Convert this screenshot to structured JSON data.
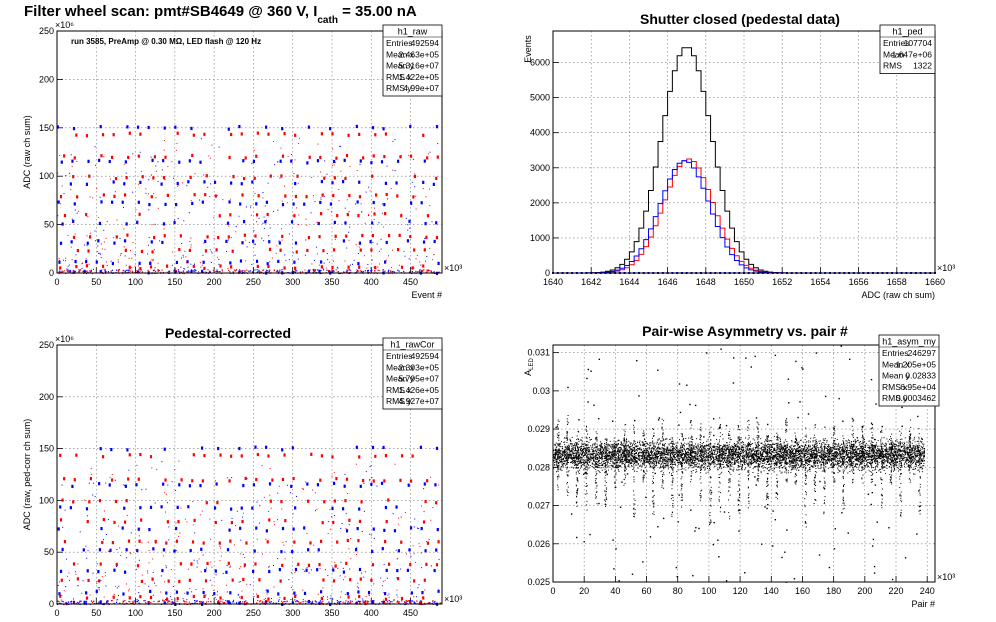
{
  "chart_data": [
    {
      "id": "raw",
      "type": "scatter",
      "title_main": "Filter wheel scan: pmt#SB4649 @   360 V, I",
      "title_sub": "cath",
      "title_tail": " = 35.00 nA",
      "annotation": "run 3585, PreAmp @ 0.30 MΩ, LED flash @  120 Hz",
      "xlabel": "Event #",
      "ylabel": "ADC (raw ch sum)",
      "x_exponent": "×10³",
      "y_exponent": "×10⁶",
      "xlim": [
        0,
        490
      ],
      "ylim": [
        0,
        250
      ],
      "xticks": [
        "0",
        "50",
        "100",
        "150",
        "200",
        "250",
        "300",
        "350",
        "400",
        "450"
      ],
      "yticks": [
        "0",
        "50",
        "100",
        "150",
        "200",
        "250"
      ],
      "grid": true,
      "series": [
        {
          "color": "#0000ff",
          "levels": [
            1,
            11,
            32,
            52,
            72,
            93,
            115,
            150
          ]
        },
        {
          "color": "#ff0000",
          "levels": [
            6,
            23,
            38,
            60,
            80,
            99,
            120,
            143
          ]
        }
      ],
      "stats": {
        "name": "h1_raw",
        "rows": [
          [
            "Entries",
            "492594"
          ],
          [
            "Mean x",
            "2.463e+05"
          ],
          [
            "Mean y",
            "5.316e+07"
          ],
          [
            "RMS x",
            "1.422e+05"
          ],
          [
            "RMS y",
            "4.99e+07"
          ]
        ]
      }
    },
    {
      "id": "ped",
      "type": "line",
      "title": "Shutter closed (pedestal data)",
      "xlabel": "ADC (raw ch sum)",
      "ylabel": "Events",
      "x_exponent": "×10³",
      "xlim": [
        1640,
        1660
      ],
      "ylim": [
        0,
        6900
      ],
      "xticks": [
        "1640",
        "1642",
        "1644",
        "1646",
        "1648",
        "1650",
        "1652",
        "1654",
        "1656",
        "1658",
        "1660"
      ],
      "yticks": [
        "0",
        "1000",
        "2000",
        "3000",
        "4000",
        "5000",
        "6000"
      ],
      "grid": true,
      "series": [
        {
          "color": "#000000",
          "mean": 1647.0,
          "sigma": 1.32,
          "peak": 6450
        },
        {
          "color": "#ff0000",
          "mean": 1647.1,
          "sigma": 1.3,
          "peak": 3250
        },
        {
          "color": "#0000ff",
          "mean": 1646.9,
          "sigma": 1.3,
          "peak": 3200
        }
      ],
      "stats": {
        "name": "h1_ped",
        "rows": [
          [
            "Entries",
            "107704"
          ],
          [
            "Mean",
            "1.647e+06"
          ],
          [
            "RMS",
            "1322"
          ]
        ]
      }
    },
    {
      "id": "cor",
      "type": "scatter",
      "title": "Pedestal-corrected",
      "xlabel": "Event #",
      "ylabel": "ADC (raw, ped-corr ch sum)",
      "x_exponent": "×10³",
      "y_exponent": "×10⁶",
      "xlim": [
        0,
        490
      ],
      "ylim": [
        0,
        250
      ],
      "xticks": [
        "0",
        "50",
        "100",
        "150",
        "200",
        "250",
        "300",
        "350",
        "400",
        "450"
      ],
      "yticks": [
        "0",
        "50",
        "100",
        "150",
        "200",
        "250"
      ],
      "grid": true,
      "series": [
        {
          "color": "#0000ff",
          "levels": [
            1,
            11,
            32,
            52,
            72,
            93,
            115,
            150
          ]
        },
        {
          "color": "#ff0000",
          "levels": [
            6,
            23,
            38,
            60,
            80,
            99,
            120,
            143
          ]
        }
      ],
      "stats": {
        "name": "h1_rawCor",
        "rows": [
          [
            "Entries",
            "492594"
          ],
          [
            "Mean x",
            "2.393e+05"
          ],
          [
            "Mean y",
            "5.795e+07"
          ],
          [
            "RMS x",
            "1.426e+05"
          ],
          [
            "RMS y",
            "4.927e+07"
          ]
        ]
      }
    },
    {
      "id": "asym",
      "type": "scatter",
      "title": "Pair-wise Asymmetry vs. pair #",
      "xlabel": "Pair #",
      "ylabel_main": "A",
      "ylabel_sub": "LED",
      "x_exponent": "×10³",
      "xlim": [
        0,
        245
      ],
      "ylim": [
        0.025,
        0.0312
      ],
      "xticks": [
        "0",
        "20",
        "40",
        "60",
        "80",
        "100",
        "120",
        "140",
        "160",
        "180",
        "200",
        "220",
        "240"
      ],
      "yticks": [
        "0.025",
        "0.026",
        "0.027",
        "0.028",
        "0.029",
        "0.03",
        "0.031"
      ],
      "grid": true,
      "band": {
        "center": 0.02833,
        "half_width": 0.0005,
        "x_end": 238
      },
      "stats": {
        "name": "h1_asym_my",
        "rows": [
          [
            "Entries",
            "246297"
          ],
          [
            "Mean x",
            "1.205e+05"
          ],
          [
            "Mean y",
            "0.02833"
          ],
          [
            "RMS x",
            "6.95e+04"
          ],
          [
            "RMS y",
            "0.0003462"
          ]
        ]
      }
    }
  ]
}
